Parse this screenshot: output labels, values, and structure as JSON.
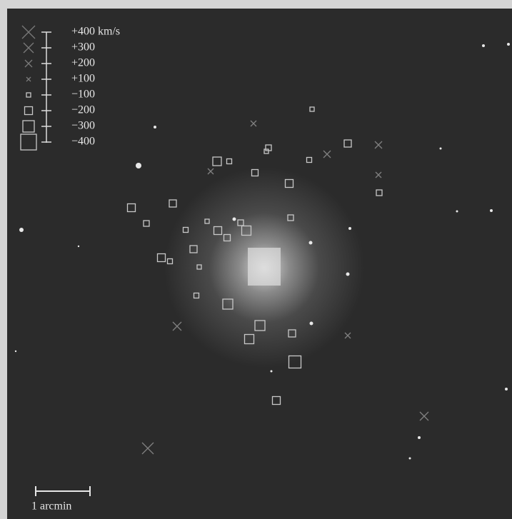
{
  "legend": {
    "labels": [
      "+400 km/s",
      "+300",
      "+200",
      "+100",
      "−100",
      "−200",
      "−300",
      "−400"
    ]
  },
  "scale_bar": {
    "label": "1 arcmin"
  }
}
